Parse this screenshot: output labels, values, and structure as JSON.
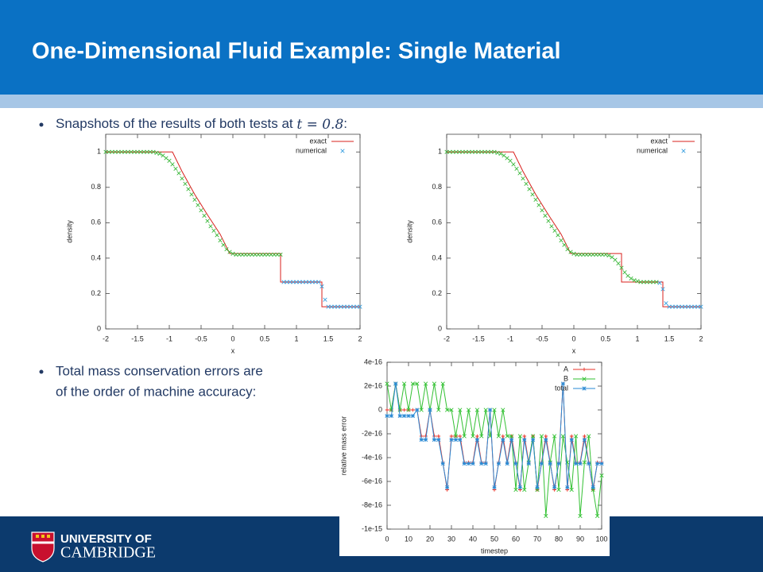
{
  "header": {
    "title": "One-Dimensional Fluid Example: Single Material"
  },
  "bullets": [
    {
      "text": "Snapshots of the results of both tests at ",
      "math": "t = 0.8",
      "tail": ":"
    },
    {
      "lines": [
        "Total mass conservation errors are",
        "of the order of machine accuracy:"
      ]
    }
  ],
  "footer": {
    "logo_lines": [
      "UNIVERSITY OF",
      "CAMBRIDGE"
    ]
  },
  "chart_data": [
    {
      "type": "line",
      "xlabel": "x",
      "ylabel": "density",
      "xlim": [
        -2,
        2
      ],
      "ylim": [
        0,
        1.1
      ],
      "xticks": [
        -2,
        -1.5,
        -1,
        -0.5,
        0,
        0.5,
        1,
        1.5,
        2
      ],
      "yticks": [
        0,
        0.2,
        0.4,
        0.6,
        0.8,
        1
      ],
      "series": [
        {
          "name": "exact",
          "color": "#d9201e",
          "style": "line",
          "x": [
            -2,
            -0.95,
            -0.8,
            -0.6,
            -0.4,
            -0.2,
            -0.05,
            0.75,
            0.75,
            1.4,
            1.4,
            2
          ],
          "values": [
            1,
            1,
            0.89,
            0.76,
            0.645,
            0.535,
            0.426,
            0.426,
            0.265,
            0.265,
            0.125,
            0.125
          ]
        },
        {
          "color": "#3cb83c",
          "style": "x",
          "x": [
            -2,
            -1.95,
            -1.9,
            -1.85,
            -1.8,
            -1.75,
            -1.7,
            -1.65,
            -1.6,
            -1.55,
            -1.5,
            -1.45,
            -1.4,
            -1.35,
            -1.3,
            -1.25,
            -1.2,
            -1.15,
            -1.1,
            -1.05,
            -1,
            -0.95,
            -0.9,
            -0.85,
            -0.8,
            -0.75,
            -0.7,
            -0.65,
            -0.6,
            -0.55,
            -0.5,
            -0.45,
            -0.4,
            -0.35,
            -0.3,
            -0.25,
            -0.2,
            -0.15,
            -0.1,
            -0.05,
            0,
            0.05,
            0.1,
            0.15,
            0.2,
            0.25,
            0.3,
            0.35,
            0.4,
            0.45,
            0.5,
            0.55,
            0.6,
            0.65,
            0.7,
            0.75
          ],
          "values": [
            1,
            1,
            1,
            1,
            1,
            1,
            1,
            1,
            1,
            1,
            1,
            1,
            1,
            1,
            1,
            1,
            0.995,
            0.99,
            0.98,
            0.965,
            0.95,
            0.93,
            0.905,
            0.88,
            0.85,
            0.82,
            0.79,
            0.76,
            0.73,
            0.7,
            0.67,
            0.64,
            0.61,
            0.58,
            0.555,
            0.53,
            0.5,
            0.475,
            0.45,
            0.435,
            0.425,
            0.42,
            0.42,
            0.42,
            0.42,
            0.42,
            0.42,
            0.42,
            0.42,
            0.42,
            0.42,
            0.42,
            0.42,
            0.42,
            0.42,
            0.42
          ]
        },
        {
          "name": "numerical",
          "color": "#3aa0e0",
          "style": "x",
          "x": [
            0.8,
            0.85,
            0.9,
            0.95,
            1,
            1.05,
            1.1,
            1.15,
            1.2,
            1.25,
            1.3,
            1.35,
            1.4,
            1.45,
            1.5,
            1.55,
            1.6,
            1.65,
            1.7,
            1.75,
            1.8,
            1.85,
            1.9,
            1.95,
            2
          ],
          "values": [
            0.265,
            0.265,
            0.265,
            0.265,
            0.265,
            0.265,
            0.265,
            0.265,
            0.265,
            0.265,
            0.265,
            0.265,
            0.24,
            0.165,
            0.125,
            0.125,
            0.125,
            0.125,
            0.125,
            0.125,
            0.125,
            0.125,
            0.125,
            0.125,
            0.125
          ]
        }
      ]
    },
    {
      "type": "line",
      "xlabel": "x",
      "ylabel": "density",
      "xlim": [
        -2,
        2
      ],
      "ylim": [
        0,
        1.1
      ],
      "xticks": [
        -2,
        -1.5,
        -1,
        -0.5,
        0,
        0.5,
        1,
        1.5,
        2
      ],
      "yticks": [
        0,
        0.2,
        0.4,
        0.6,
        0.8,
        1
      ],
      "series": [
        {
          "name": "exact",
          "color": "#d9201e",
          "style": "line",
          "x": [
            -2,
            -0.95,
            -0.8,
            -0.6,
            -0.4,
            -0.2,
            -0.05,
            0.75,
            0.75,
            1.4,
            1.4,
            2
          ],
          "values": [
            1,
            1,
            0.89,
            0.76,
            0.645,
            0.535,
            0.426,
            0.426,
            0.265,
            0.265,
            0.125,
            0.125
          ]
        },
        {
          "color": "#3cb83c",
          "style": "x",
          "x": [
            -2,
            -1.95,
            -1.9,
            -1.85,
            -1.8,
            -1.75,
            -1.7,
            -1.65,
            -1.6,
            -1.55,
            -1.5,
            -1.45,
            -1.4,
            -1.35,
            -1.3,
            -1.25,
            -1.2,
            -1.15,
            -1.1,
            -1.05,
            -1,
            -0.95,
            -0.9,
            -0.85,
            -0.8,
            -0.75,
            -0.7,
            -0.65,
            -0.6,
            -0.55,
            -0.5,
            -0.45,
            -0.4,
            -0.35,
            -0.3,
            -0.25,
            -0.2,
            -0.15,
            -0.1,
            -0.05,
            0,
            0.05,
            0.1,
            0.15,
            0.2,
            0.25,
            0.3,
            0.35,
            0.4,
            0.45,
            0.5,
            0.55,
            0.6,
            0.65,
            0.7,
            0.75,
            0.8,
            0.85,
            0.9,
            0.95,
            1,
            1.05,
            1.1,
            1.15,
            1.2,
            1.25,
            1.3
          ],
          "values": [
            1,
            1,
            1,
            1,
            1,
            1,
            1,
            1,
            1,
            1,
            1,
            1,
            1,
            1,
            1,
            1,
            0.995,
            0.99,
            0.98,
            0.965,
            0.95,
            0.93,
            0.905,
            0.88,
            0.85,
            0.82,
            0.79,
            0.76,
            0.73,
            0.7,
            0.67,
            0.64,
            0.61,
            0.58,
            0.555,
            0.53,
            0.5,
            0.475,
            0.45,
            0.435,
            0.425,
            0.42,
            0.42,
            0.42,
            0.42,
            0.42,
            0.42,
            0.42,
            0.42,
            0.42,
            0.42,
            0.415,
            0.405,
            0.39,
            0.37,
            0.345,
            0.32,
            0.3,
            0.285,
            0.275,
            0.27,
            0.265,
            0.265,
            0.265,
            0.265,
            0.265,
            0.265
          ]
        },
        {
          "name": "numerical",
          "color": "#3aa0e0",
          "style": "x",
          "x": [
            1.35,
            1.4,
            1.45,
            1.5,
            1.55,
            1.6,
            1.65,
            1.7,
            1.75,
            1.8,
            1.85,
            1.9,
            1.95,
            2
          ],
          "values": [
            0.26,
            0.225,
            0.145,
            0.125,
            0.125,
            0.125,
            0.125,
            0.125,
            0.125,
            0.125,
            0.125,
            0.125,
            0.125,
            0.125
          ]
        }
      ]
    },
    {
      "type": "line",
      "xlabel": "timestep",
      "ylabel": "relative mass error",
      "xlim": [
        0,
        100
      ],
      "ylim": [
        -1e-15,
        4e-16
      ],
      "xticks": [
        0,
        10,
        20,
        30,
        40,
        50,
        60,
        70,
        80,
        90,
        100
      ],
      "yticks": [
        4e-16,
        2e-16,
        0,
        -2e-16,
        -4e-16,
        -6e-16,
        -8e-16,
        -1e-15
      ],
      "series": [
        {
          "name": "A",
          "color": "#e8332a",
          "style": "line+",
          "x": [
            0,
            2,
            4,
            6,
            8,
            10,
            12,
            14,
            16,
            18,
            20,
            22,
            24,
            26,
            28,
            30,
            32,
            34,
            36,
            38,
            40,
            42,
            44,
            46,
            48,
            50,
            52,
            54,
            56,
            58,
            60,
            62,
            64,
            66,
            68,
            70,
            72,
            74,
            76,
            78,
            80,
            82,
            84,
            86,
            88,
            90,
            92,
            94,
            96,
            98,
            100
          ],
          "values": [
            0,
            0,
            2.2e-16,
            0,
            0,
            0,
            0,
            0,
            -2.2e-16,
            -2.2e-16,
            0,
            -2.2e-16,
            -2.2e-16,
            -4.4e-16,
            -6.7e-16,
            -2.2e-16,
            -2.2e-16,
            -2.2e-16,
            -4.4e-16,
            -4.4e-16,
            -4.4e-16,
            -2.2e-16,
            -4.4e-16,
            -4.4e-16,
            0,
            -6.7e-16,
            -4.4e-16,
            -2.2e-16,
            -4.4e-16,
            -2.2e-16,
            -4.4e-16,
            -6.7e-16,
            -2.2e-16,
            -4.4e-16,
            -2.2e-16,
            -6.7e-16,
            -4.4e-16,
            -2.2e-16,
            -4.4e-16,
            -6.7e-16,
            -4.4e-16,
            2.2e-16,
            -6.7e-16,
            -2.2e-16,
            -4.4e-16,
            -4.4e-16,
            -2.2e-16,
            -4.4e-16,
            -6.7e-16,
            -4.4e-16,
            -4.4e-16
          ]
        },
        {
          "name": "B",
          "color": "#33c133",
          "style": "linex",
          "x": [
            0,
            2,
            4,
            6,
            8,
            10,
            12,
            14,
            16,
            18,
            20,
            22,
            24,
            26,
            28,
            30,
            32,
            34,
            36,
            38,
            40,
            42,
            44,
            46,
            48,
            50,
            52,
            54,
            56,
            58,
            60,
            62,
            64,
            66,
            68,
            70,
            72,
            74,
            76,
            78,
            80,
            82,
            84,
            86,
            88,
            90,
            92,
            94,
            96,
            98,
            100
          ],
          "values": [
            2.2e-16,
            0,
            2.2e-16,
            0,
            2.2e-16,
            0,
            2.2e-16,
            2.2e-16,
            0,
            2.2e-16,
            0,
            2.2e-16,
            0,
            2.2e-16,
            0,
            0,
            -2.2e-16,
            0,
            -2.2e-16,
            0,
            -2.2e-16,
            0,
            -2.2e-16,
            0,
            -2.2e-16,
            0,
            -2.2e-16,
            0,
            -2.2e-16,
            -2.2e-16,
            -6.7e-16,
            -2.2e-16,
            -6.7e-16,
            -4.4e-16,
            -2.2e-16,
            -6.7e-16,
            -2.2e-16,
            -8.9e-16,
            -4.4e-16,
            -2.2e-16,
            -6.7e-16,
            -2.2e-16,
            -4.4e-16,
            -6.7e-16,
            -2.2e-16,
            -8.9e-16,
            -4.4e-16,
            -2.2e-16,
            -6.7e-16,
            -8.9e-16,
            -5.5e-16
          ]
        },
        {
          "name": "total",
          "color": "#2a8ad4",
          "style": "line*",
          "x": [
            0,
            2,
            4,
            6,
            8,
            10,
            12,
            14,
            16,
            18,
            20,
            22,
            24,
            26,
            28,
            30,
            32,
            34,
            36,
            38,
            40,
            42,
            44,
            46,
            48,
            50,
            52,
            54,
            56,
            58,
            60,
            62,
            64,
            66,
            68,
            70,
            72,
            74,
            76,
            78,
            80,
            82,
            84,
            86,
            88,
            90,
            92,
            94,
            96,
            98,
            100
          ],
          "values": [
            -5e-17,
            -5e-17,
            2.2e-16,
            -5e-17,
            -5e-17,
            -5e-17,
            -5e-17,
            0,
            -2.5e-16,
            -2.5e-16,
            0,
            -2.5e-16,
            -2.5e-16,
            -4.5e-16,
            -6.5e-16,
            -2.5e-16,
            -2.5e-16,
            -2.5e-16,
            -4.5e-16,
            -4.5e-16,
            -4.5e-16,
            -2.5e-16,
            -4.5e-16,
            -4.5e-16,
            0,
            -6.5e-16,
            -4.5e-16,
            -2.5e-16,
            -4.5e-16,
            -2.5e-16,
            -4.5e-16,
            -6.5e-16,
            -2.5e-16,
            -4.5e-16,
            -2.5e-16,
            -6.5e-16,
            -4.5e-16,
            -2.5e-16,
            -4.5e-16,
            -6.5e-16,
            -4.5e-16,
            2.2e-16,
            -6.5e-16,
            -2.5e-16,
            -4.5e-16,
            -4.5e-16,
            -2.5e-16,
            -4.5e-16,
            -6.5e-16,
            -4.5e-16,
            -4.5e-16
          ]
        }
      ]
    }
  ]
}
